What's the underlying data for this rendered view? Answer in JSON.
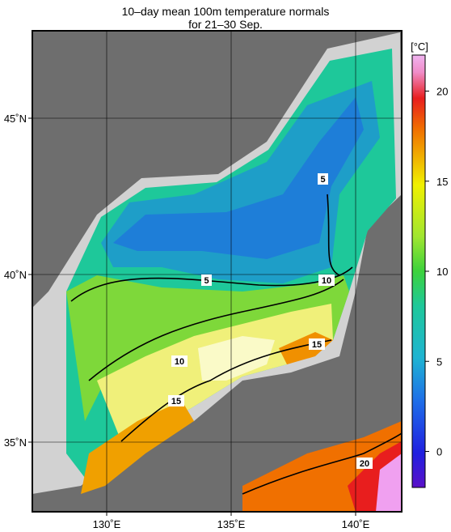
{
  "title": {
    "line1": "10–day mean 100m temperature normals",
    "line2": "for 21–30 Sep."
  },
  "colorbar": {
    "unit": "[°C]",
    "ticks": [
      "0",
      "5",
      "10",
      "15",
      "20"
    ],
    "tick_values": [
      0,
      5,
      10,
      15,
      20
    ],
    "range": [
      -2,
      22
    ],
    "colors": [
      "#5a10c8",
      "#2020e0",
      "#1e6ee8",
      "#1eb4d2",
      "#1ec89a",
      "#3cd23c",
      "#a0e630",
      "#f0f000",
      "#f0b400",
      "#f06e00",
      "#e81e1e",
      "#f0a0f0"
    ]
  },
  "axes": {
    "x_ticks": [
      "130˚E",
      "135˚E",
      "140˚E"
    ],
    "y_ticks": [
      "45˚N",
      "40˚N",
      "35˚N"
    ],
    "lon_range": [
      127,
      142
    ],
    "lat_range": [
      33,
      48
    ]
  },
  "contour_labels": [
    "5",
    "5",
    "10",
    "10",
    "15",
    "15",
    "20"
  ],
  "colors": {
    "land": "#6e6e6e",
    "no_data": "#d2d2d2",
    "background": "#ffffff"
  }
}
